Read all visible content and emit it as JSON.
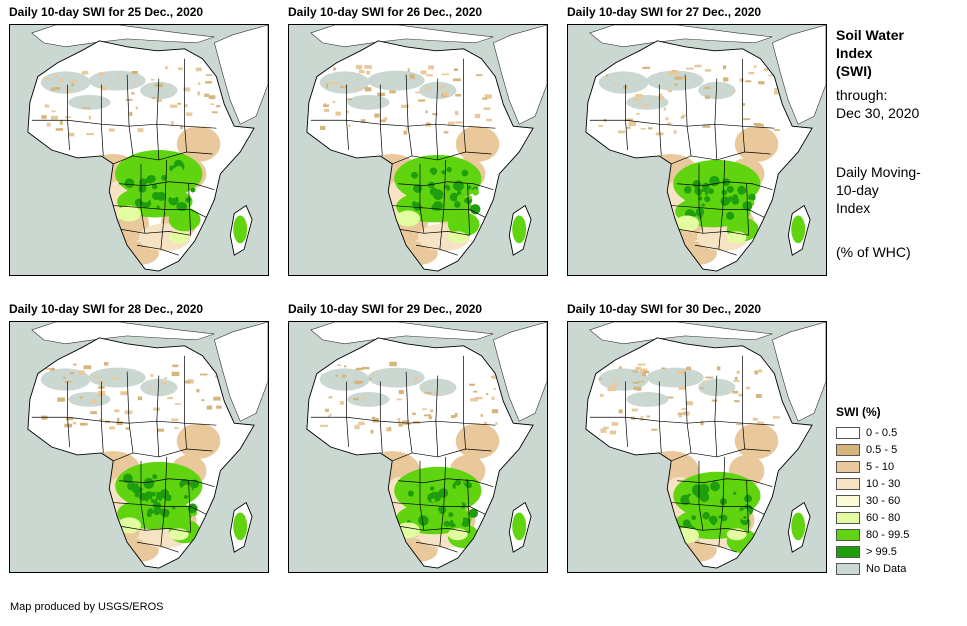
{
  "panels": [
    {
      "title": "Daily 10-day SWI for 25 Dec., 2020"
    },
    {
      "title": "Daily 10-day SWI for 26 Dec., 2020"
    },
    {
      "title": "Daily 10-day SWI for 27 Dec., 2020"
    },
    {
      "title": "Daily 10-day SWI for 28 Dec., 2020"
    },
    {
      "title": "Daily 10-day SWI for 29 Dec., 2020"
    },
    {
      "title": "Daily 10-day SWI for 30 Dec., 2020"
    }
  ],
  "side": {
    "title_lines": [
      "Soil Water",
      "Index",
      "(SWI)"
    ],
    "through_lines": [
      "through:",
      "Dec 30, 2020"
    ],
    "desc_lines": [
      "Daily Moving-",
      "10-day",
      "Index"
    ],
    "unit": "(% of WHC)"
  },
  "legend": {
    "title": "SWI (%)",
    "items": [
      {
        "label": "0 - 0.5",
        "color": "#ffffff"
      },
      {
        "label": "0.5 - 5",
        "color": "#d6b57d"
      },
      {
        "label": "5 - 10",
        "color": "#e9c99b"
      },
      {
        "label": "10 - 30",
        "color": "#f6e3c3"
      },
      {
        "label": "30 - 60",
        "color": "#fcfad6"
      },
      {
        "label": "60 - 80",
        "color": "#e3fca2"
      },
      {
        "label": "80 - 99.5",
        "color": "#5fd40f"
      },
      {
        "label": "> 99.5",
        "color": "#1e9e0c"
      },
      {
        "label": "No Data",
        "color": "#cbd8d1"
      }
    ]
  },
  "credit": "Map produced by USGS/EROS"
}
